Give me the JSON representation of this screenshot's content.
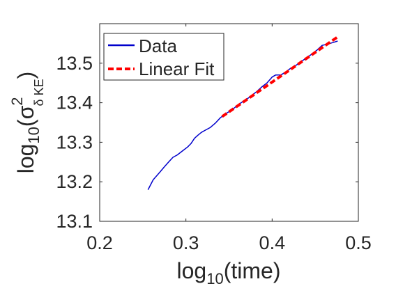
{
  "chart_data": {
    "type": "line",
    "title": "",
    "xlabel": {
      "base": "log",
      "sub": "10",
      "rest": "(time)"
    },
    "ylabel": {
      "base": "log",
      "sub": "10",
      "open": "(σ",
      "sup": "2",
      "sub2": "δ KE",
      "close": ")"
    },
    "xlim": [
      0.2,
      0.5
    ],
    "ylim": [
      13.1,
      13.6
    ],
    "xticks": [
      "0.2",
      "0.3",
      "0.4",
      "0.5"
    ],
    "yticks": [
      "13.1",
      "13.2",
      "13.3",
      "13.4",
      "13.5"
    ],
    "grid": false,
    "legend_position": "top-left",
    "colors": {
      "data": "#0000cc",
      "fit": "#ff0000",
      "axis": "#262626"
    },
    "series": [
      {
        "name": "Data",
        "style": "solid",
        "x": [
          0.256,
          0.262,
          0.266,
          0.27,
          0.275,
          0.28,
          0.285,
          0.29,
          0.296,
          0.302,
          0.306,
          0.31,
          0.314,
          0.318,
          0.322,
          0.328,
          0.334,
          0.34,
          0.346,
          0.352,
          0.358,
          0.364,
          0.37,
          0.376,
          0.382,
          0.388,
          0.394,
          0.4,
          0.404,
          0.41,
          0.416,
          0.422,
          0.428,
          0.434,
          0.44,
          0.446,
          0.452,
          0.458,
          0.464,
          0.47,
          0.476
        ],
        "y": [
          13.18,
          13.205,
          13.215,
          13.225,
          13.238,
          13.25,
          13.262,
          13.268,
          13.278,
          13.288,
          13.297,
          13.31,
          13.318,
          13.325,
          13.33,
          13.337,
          13.348,
          13.362,
          13.372,
          13.38,
          13.39,
          13.4,
          13.408,
          13.418,
          13.428,
          13.44,
          13.45,
          13.465,
          13.47,
          13.47,
          13.478,
          13.488,
          13.495,
          13.505,
          13.513,
          13.523,
          13.533,
          13.545,
          13.548,
          13.552,
          13.556
        ]
      },
      {
        "name": "Linear Fit",
        "style": "dashed",
        "x": [
          0.342,
          0.477
        ],
        "y": [
          13.365,
          13.568
        ]
      }
    ]
  }
}
